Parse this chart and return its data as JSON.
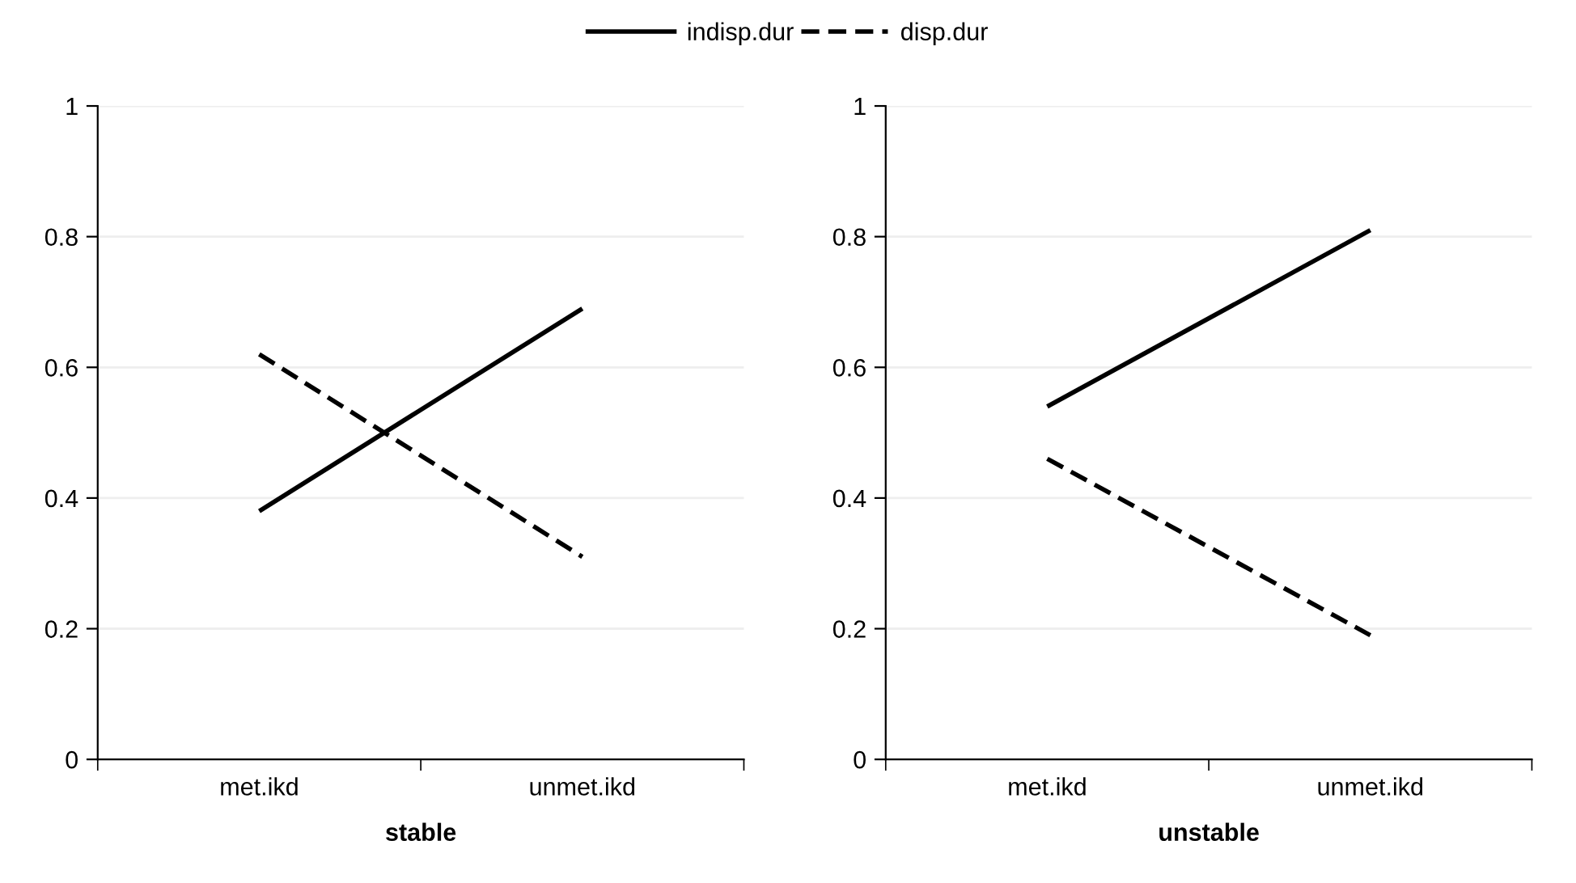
{
  "chart_data": [
    {
      "type": "line",
      "xlabel": "stable",
      "categories": [
        "met.ikd",
        "unmet.ikd"
      ],
      "ylim": [
        0,
        1
      ],
      "yticks": [
        0,
        0.2,
        0.4,
        0.6,
        0.8,
        1
      ],
      "grid": "y",
      "legend": "top",
      "series": [
        {
          "name": "indisp.dur",
          "color": "#000000",
          "line_style": "solid",
          "values": [
            0.38,
            0.69
          ]
        },
        {
          "name": "disp.dur",
          "color": "#000000",
          "line_style": "dashed",
          "values": [
            0.62,
            0.31
          ]
        }
      ]
    },
    {
      "type": "line",
      "xlabel": "unstable",
      "categories": [
        "met.ikd",
        "unmet.ikd"
      ],
      "ylim": [
        0,
        1
      ],
      "yticks": [
        0,
        0.2,
        0.4,
        0.6,
        0.8,
        1
      ],
      "grid": "y",
      "series": [
        {
          "color": "#000000",
          "line_style": "solid",
          "values": [
            0.54,
            0.81
          ]
        },
        {
          "color": "#000000",
          "line_style": "dashed",
          "values": [
            0.46,
            0.19
          ]
        }
      ]
    }
  ]
}
